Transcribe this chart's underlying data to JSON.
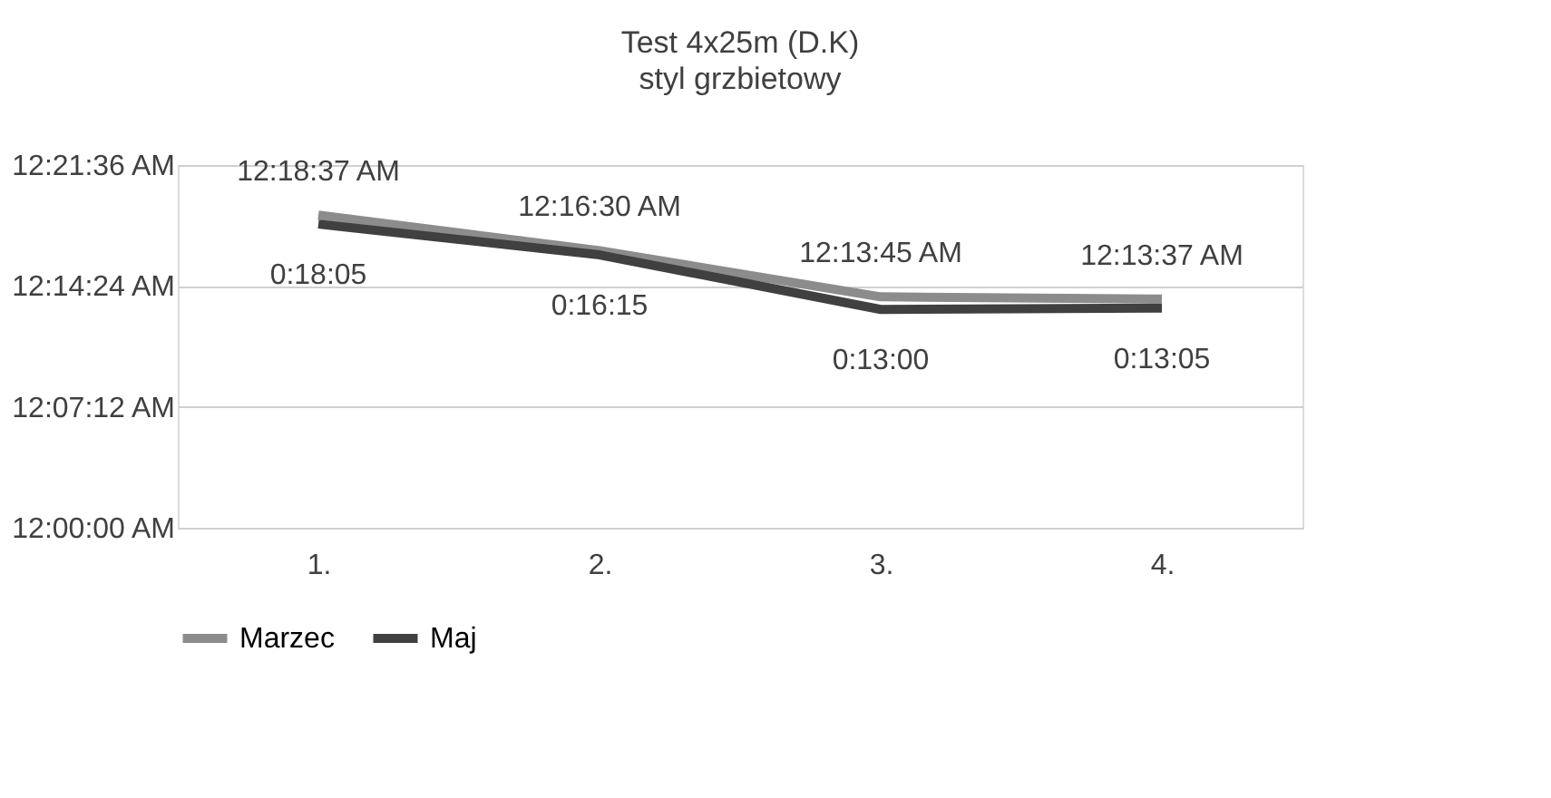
{
  "chart_data": {
    "type": "line",
    "title": "Test 4x25m (D.K)",
    "subtitle": "styl grzbietowy",
    "categories": [
      "1.",
      "2.",
      "3.",
      "4."
    ],
    "series": [
      {
        "name": "Marzec",
        "color": "#8c8c8c",
        "values": [
          1117,
          990,
          825,
          817
        ],
        "value_labels": [
          "12:18:37 AM",
          "12:16:30 AM",
          "12:13:45 AM",
          "12:13:37 AM"
        ]
      },
      {
        "name": "Maj",
        "color": "#404040",
        "values": [
          1085,
          975,
          780,
          785
        ],
        "value_labels": [
          "0:18:05",
          "0:16:15",
          "0:13:00",
          "0:13:05"
        ]
      }
    ],
    "ylim": [
      0,
      1296
    ],
    "yticks": [
      {
        "value": 0,
        "label": "12:00:00 AM"
      },
      {
        "value": 432,
        "label": "12:07:12 AM"
      },
      {
        "value": 864,
        "label": "12:14:24 AM"
      },
      {
        "value": 1296,
        "label": "12:21:36 AM"
      }
    ],
    "grid": "y",
    "legend": "bottom",
    "marker": "none",
    "line_style": "solid"
  }
}
